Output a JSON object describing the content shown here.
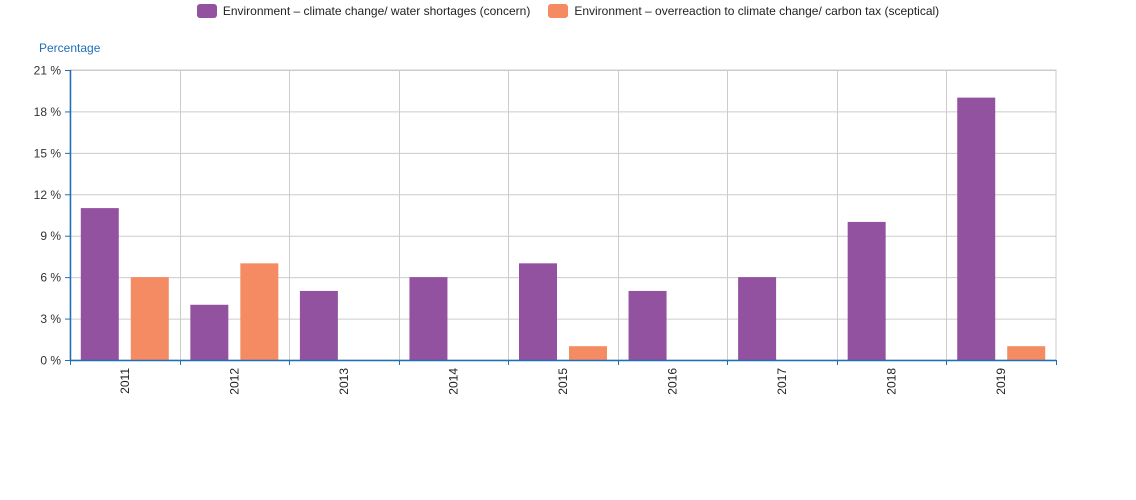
{
  "chart_data": {
    "type": "bar",
    "categories": [
      "2011",
      "2012",
      "2013",
      "2014",
      "2015",
      "2016",
      "2017",
      "2018",
      "2019"
    ],
    "series": [
      {
        "name": "Environment – climate change/ water shortages (concern)",
        "color": "#93529f",
        "values": [
          11,
          4,
          5,
          6,
          7,
          5,
          6,
          10,
          19
        ]
      },
      {
        "name": "Environment – overreaction to climate change/ carbon tax (sceptical)",
        "color": "#f58b63",
        "values": [
          6,
          7,
          0,
          0,
          1,
          0,
          0,
          0,
          1
        ]
      }
    ],
    "ylabel": "Percentage",
    "ylim": [
      0,
      21
    ],
    "yticks": [
      "0 %",
      "3 %",
      "6 %",
      "9 %",
      "12 %",
      "15 %",
      "18 %",
      "21 %"
    ],
    "ytick_values": [
      0,
      3,
      6,
      9,
      12,
      15,
      18,
      21
    ],
    "grid": true,
    "legend_position": "top-center",
    "axis_color": "#1f6fb8"
  }
}
